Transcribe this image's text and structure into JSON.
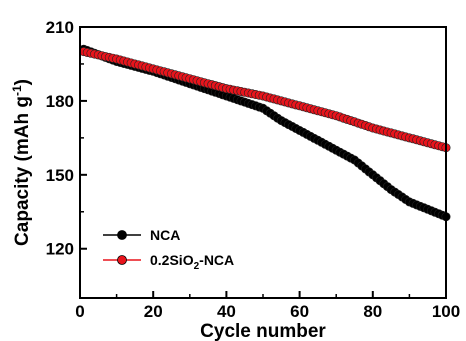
{
  "chart_data": {
    "type": "line",
    "xlabel": "Cycle number",
    "ylabel_main": "Capacity (mAh g",
    "ylabel_sup": "-1",
    "ylabel_close": ")",
    "xlim": [
      0,
      100
    ],
    "ylim": [
      100,
      210
    ],
    "x_ticks": [
      0,
      20,
      40,
      60,
      80,
      100
    ],
    "y_ticks": [
      120,
      150,
      180,
      210
    ],
    "legend_position": "lower-left",
    "grid": false,
    "series": [
      {
        "name": "NCA",
        "color": "#000000",
        "x": [
          1,
          10,
          20,
          30,
          40,
          50,
          55,
          60,
          65,
          70,
          75,
          80,
          85,
          90,
          95,
          100
        ],
        "values": [
          201,
          196,
          192,
          187,
          182,
          177,
          172,
          168,
          164,
          160,
          156,
          150,
          144,
          139,
          136,
          133
        ]
      },
      {
        "name": "0.2SiO2-NCA",
        "color": "#e8141c",
        "x": [
          1,
          10,
          20,
          30,
          40,
          50,
          60,
          70,
          80,
          90,
          100
        ],
        "values": [
          200,
          197,
          193,
          189,
          185,
          182,
          178,
          174,
          169,
          165,
          161
        ]
      }
    ],
    "legend": [
      {
        "key": "nca",
        "text": "NCA"
      },
      {
        "key": "sio2",
        "pre": "0.2SiO",
        "sub": "2",
        "post": "-NCA"
      }
    ]
  }
}
